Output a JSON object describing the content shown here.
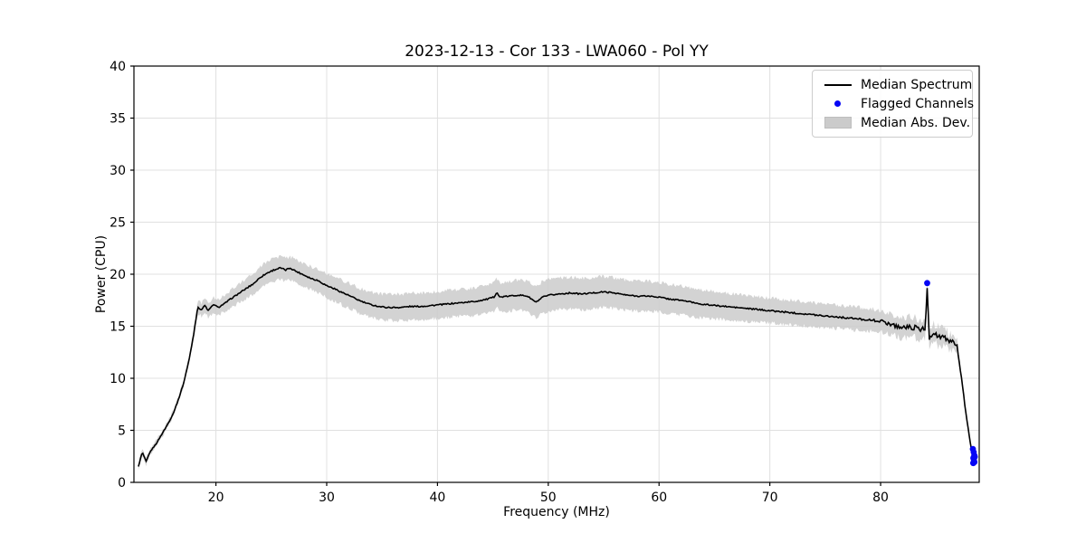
{
  "figure": {
    "title": "2023-12-13 - Cor 133 - LWA060 - Pol YY",
    "xlabel": "Frequency (MHz)",
    "ylabel": "Power (CPU)"
  },
  "legend": {
    "items": [
      {
        "label": "Median Spectrum",
        "swatch": "line-swatch"
      },
      {
        "label": "Flagged Channels",
        "swatch": "dot-swatch"
      },
      {
        "label": "Median Abs. Dev.",
        "swatch": "patch-swatch"
      }
    ]
  },
  "colors": {
    "median_line": "#000000",
    "flagged": "#0505f5",
    "mad_band": "#cbcbcb",
    "grid": "#e0e0e0",
    "spine": "#000000",
    "text": "#000000"
  },
  "chart_data": {
    "type": "line",
    "title": "2023-12-13 - Cor 133 - LWA060 - Pol YY",
    "xlabel": "Frequency (MHz)",
    "ylabel": "Power (CPU)",
    "xlim": [
      12.6,
      88.9
    ],
    "ylim": [
      0,
      40
    ],
    "xticks": [
      20,
      30,
      40,
      50,
      60,
      70,
      80
    ],
    "yticks": [
      0,
      5,
      10,
      15,
      20,
      25,
      30,
      35,
      40
    ],
    "grid": true,
    "legend_position": "upper right",
    "series": [
      {
        "name": "Median Spectrum",
        "type": "line",
        "color": "#000000",
        "points": [
          [
            13.0,
            1.5
          ],
          [
            13.35,
            2.9
          ],
          [
            13.7,
            2.0
          ],
          [
            14.1,
            3.0
          ],
          [
            14.6,
            3.7
          ],
          [
            15.1,
            4.6
          ],
          [
            15.6,
            5.5
          ],
          [
            16.1,
            6.5
          ],
          [
            16.6,
            7.9
          ],
          [
            17.1,
            9.6
          ],
          [
            17.6,
            11.9
          ],
          [
            18.0,
            14.3
          ],
          [
            18.35,
            16.8
          ],
          [
            18.7,
            16.6
          ],
          [
            19.0,
            17.0
          ],
          [
            19.3,
            16.5
          ],
          [
            19.8,
            17.1
          ],
          [
            20.2,
            16.8
          ],
          [
            20.8,
            17.2
          ],
          [
            21.3,
            17.6
          ],
          [
            22.0,
            18.1
          ],
          [
            22.7,
            18.6
          ],
          [
            23.4,
            19.1
          ],
          [
            24.0,
            19.7
          ],
          [
            24.6,
            20.1
          ],
          [
            25.2,
            20.4
          ],
          [
            25.8,
            20.6
          ],
          [
            26.3,
            20.4
          ],
          [
            26.7,
            20.6
          ],
          [
            27.2,
            20.3
          ],
          [
            28.0,
            19.9
          ],
          [
            28.6,
            19.6
          ],
          [
            29.2,
            19.4
          ],
          [
            30.0,
            18.9
          ],
          [
            30.7,
            18.6
          ],
          [
            31.5,
            18.2
          ],
          [
            32.3,
            17.8
          ],
          [
            33.1,
            17.4
          ],
          [
            33.9,
            17.1
          ],
          [
            34.7,
            16.9
          ],
          [
            35.5,
            16.8
          ],
          [
            36.5,
            16.8
          ],
          [
            37.5,
            16.9
          ],
          [
            38.5,
            16.9
          ],
          [
            39.5,
            17.0
          ],
          [
            40.5,
            17.1
          ],
          [
            41.5,
            17.2
          ],
          [
            42.5,
            17.3
          ],
          [
            43.5,
            17.4
          ],
          [
            44.5,
            17.6
          ],
          [
            45.1,
            17.8
          ],
          [
            45.35,
            18.3
          ],
          [
            45.6,
            17.8
          ],
          [
            46.5,
            17.9
          ],
          [
            47.3,
            18.0
          ],
          [
            48.1,
            17.9
          ],
          [
            48.9,
            17.3
          ],
          [
            49.5,
            17.8
          ],
          [
            50.2,
            18.0
          ],
          [
            51.0,
            18.1
          ],
          [
            52.0,
            18.2
          ],
          [
            53.0,
            18.1
          ],
          [
            54.0,
            18.2
          ],
          [
            55.0,
            18.3
          ],
          [
            56.0,
            18.2
          ],
          [
            57.0,
            18.0
          ],
          [
            58.0,
            17.9
          ],
          [
            59.0,
            17.9
          ],
          [
            60.0,
            17.8
          ],
          [
            61.0,
            17.6
          ],
          [
            62.0,
            17.5
          ],
          [
            63.0,
            17.3
          ],
          [
            64.0,
            17.1
          ],
          [
            65.0,
            17.0
          ],
          [
            66.0,
            16.9
          ],
          [
            67.0,
            16.8
          ],
          [
            68.0,
            16.7
          ],
          [
            69.0,
            16.6
          ],
          [
            70.0,
            16.5
          ],
          [
            71.0,
            16.4
          ],
          [
            72.0,
            16.3
          ],
          [
            73.0,
            16.2
          ],
          [
            74.0,
            16.1
          ],
          [
            75.0,
            16.0
          ],
          [
            76.0,
            15.9
          ],
          [
            77.0,
            15.8
          ],
          [
            78.0,
            15.7
          ],
          [
            79.0,
            15.6
          ],
          [
            80.0,
            15.5
          ],
          [
            80.6,
            15.3
          ],
          [
            81.2,
            15.1
          ],
          [
            81.8,
            14.9
          ],
          [
            82.4,
            14.9
          ],
          [
            83.0,
            14.9
          ],
          [
            83.5,
            14.7
          ],
          [
            84.05,
            14.8
          ],
          [
            84.2,
            18.8
          ],
          [
            84.38,
            13.9
          ],
          [
            84.7,
            14.4
          ],
          [
            85.0,
            14.2
          ],
          [
            85.4,
            13.9
          ],
          [
            85.8,
            13.8
          ],
          [
            86.2,
            13.6
          ],
          [
            86.6,
            13.5
          ],
          [
            86.9,
            13.1
          ],
          [
            87.1,
            11.6
          ],
          [
            87.4,
            9.2
          ],
          [
            87.7,
            6.6
          ],
          [
            88.0,
            4.4
          ],
          [
            88.2,
            3.2
          ],
          [
            88.35,
            2.6
          ],
          [
            88.5,
            2.2
          ]
        ]
      },
      {
        "name": "Median Abs. Dev.",
        "type": "band",
        "color": "#cbcbcb",
        "half_width": [
          [
            13.0,
            0.4
          ],
          [
            14.0,
            0.3
          ],
          [
            16.0,
            0.25
          ],
          [
            17.5,
            0.3
          ],
          [
            18.4,
            0.6
          ],
          [
            19.5,
            0.7
          ],
          [
            21.0,
            0.8
          ],
          [
            23.0,
            1.0
          ],
          [
            25.5,
            1.1
          ],
          [
            28.0,
            1.1
          ],
          [
            31.0,
            1.2
          ],
          [
            34.0,
            1.2
          ],
          [
            38.0,
            1.3
          ],
          [
            42.0,
            1.3
          ],
          [
            46.0,
            1.4
          ],
          [
            50.0,
            1.55
          ],
          [
            54.0,
            1.5
          ],
          [
            58.0,
            1.45
          ],
          [
            62.0,
            1.4
          ],
          [
            66.0,
            1.3
          ],
          [
            70.0,
            1.2
          ],
          [
            74.0,
            1.15
          ],
          [
            78.0,
            1.1
          ],
          [
            81.0,
            1.0
          ],
          [
            83.0,
            0.95
          ],
          [
            84.5,
            0.9
          ],
          [
            85.5,
            0.85
          ],
          [
            86.5,
            0.7
          ],
          [
            87.2,
            0.4
          ],
          [
            88.0,
            0.2
          ],
          [
            88.5,
            0.12
          ]
        ]
      },
      {
        "name": "Flagged Channels",
        "type": "scatter",
        "color": "#0505f5",
        "points": [
          [
            84.2,
            19.15
          ],
          [
            88.33,
            3.2
          ],
          [
            88.4,
            2.9
          ],
          [
            88.46,
            2.6
          ],
          [
            88.37,
            2.35
          ],
          [
            88.43,
            2.1
          ],
          [
            88.5,
            2.45
          ],
          [
            88.36,
            1.85
          ],
          [
            88.47,
            1.95
          ]
        ]
      }
    ],
    "noise_model": {
      "line_amp": [
        [
          13.0,
          0.04
        ],
        [
          18.0,
          0.05
        ],
        [
          25.0,
          0.07
        ],
        [
          35.0,
          0.06
        ],
        [
          45.0,
          0.06
        ],
        [
          55.0,
          0.06
        ],
        [
          65.0,
          0.06
        ],
        [
          75.0,
          0.07
        ],
        [
          79.0,
          0.09
        ],
        [
          81.0,
          0.18
        ],
        [
          83.0,
          0.25
        ],
        [
          84.0,
          0.2
        ],
        [
          85.0,
          0.3
        ],
        [
          86.5,
          0.3
        ],
        [
          87.0,
          0.12
        ],
        [
          88.5,
          0.06
        ]
      ],
      "band_edge_base": 0.12,
      "sample_step_mhz": 0.1
    }
  }
}
